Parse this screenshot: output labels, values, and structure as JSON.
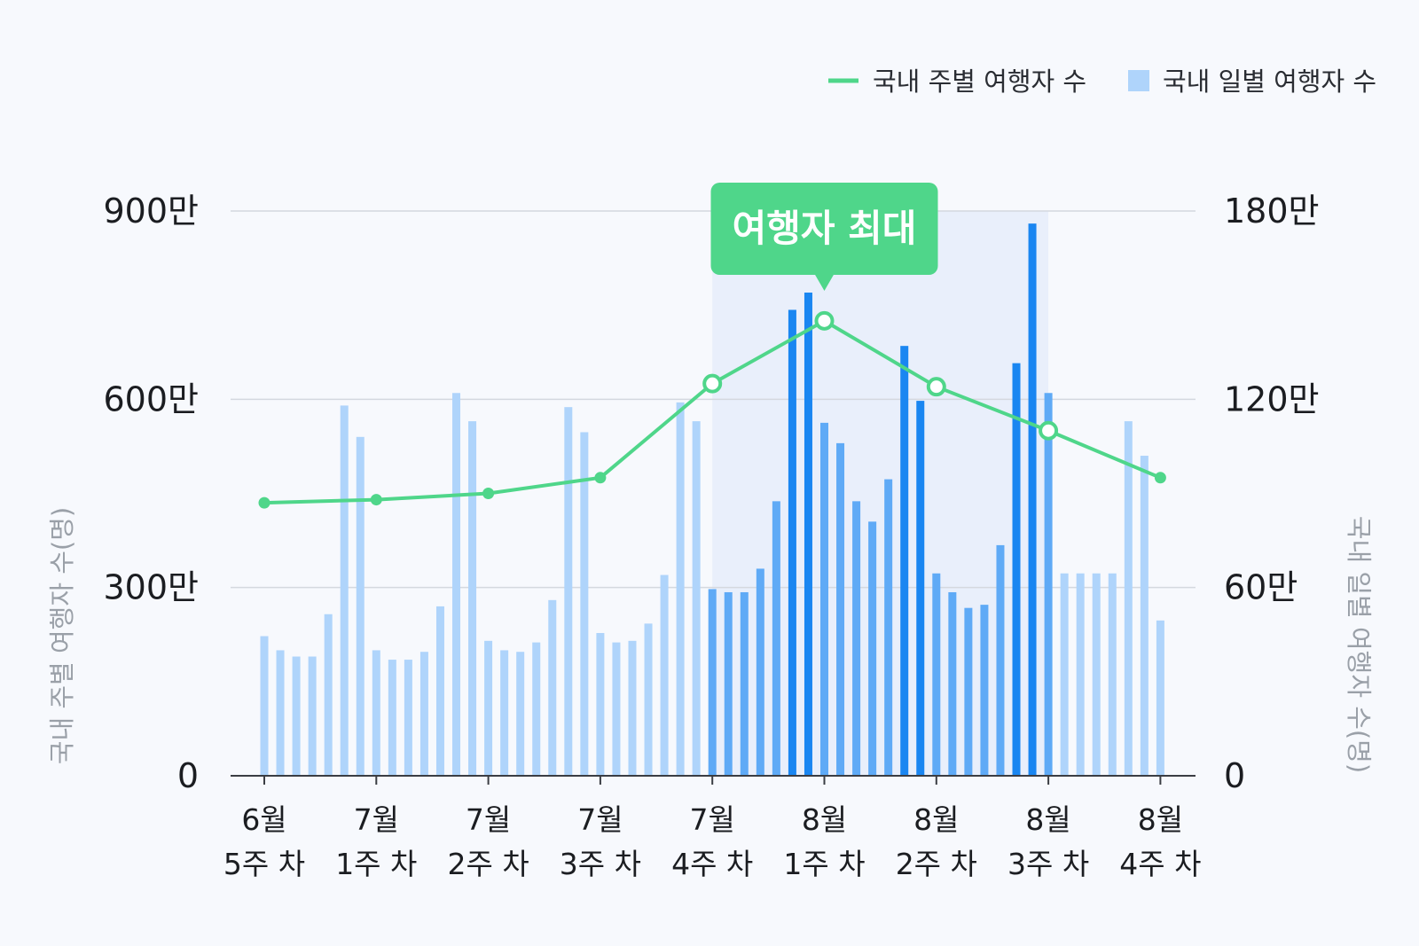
{
  "legend": {
    "weekly_label": "국내 주별 여행자 수",
    "daily_label": "국내 일별 여행자 수"
  },
  "callout": {
    "label": "여행자 최대"
  },
  "colors": {
    "background": "#f7f9fd",
    "line": "#4fd68a",
    "bar_light": "#afd4fb",
    "bar_mid": "#5faaf6",
    "bar_dark": "#1a86f1",
    "highlight_band": "#e9effb",
    "grid": "#d4d8df",
    "callout_bg": "#4fd68a"
  },
  "chart_data": {
    "type": "bar+line",
    "categories": [
      {
        "month": "6월",
        "week": "5주 차"
      },
      {
        "month": "7월",
        "week": "1주 차"
      },
      {
        "month": "7월",
        "week": "2주 차"
      },
      {
        "month": "7월",
        "week": "3주 차"
      },
      {
        "month": "7월",
        "week": "4주 차"
      },
      {
        "month": "8월",
        "week": "1주 차"
      },
      {
        "month": "8월",
        "week": "2주 차"
      },
      {
        "month": "8월",
        "week": "3주 차"
      },
      {
        "month": "8월",
        "week": "4주 차"
      }
    ],
    "y_left": {
      "title": "국내 주별 여행자 수(명)",
      "range": [
        0,
        9000000
      ],
      "ticks": [
        {
          "value": 0,
          "label": "0"
        },
        {
          "value": 3000000,
          "label": "300만"
        },
        {
          "value": 6000000,
          "label": "600만"
        },
        {
          "value": 9000000,
          "label": "900만"
        }
      ]
    },
    "y_right": {
      "title": "국내 일별 여행자 수(명)",
      "range": [
        0,
        1800000
      ],
      "ticks": [
        {
          "value": 0,
          "label": "0"
        },
        {
          "value": 600000,
          "label": "60만"
        },
        {
          "value": 1200000,
          "label": "120만"
        },
        {
          "value": 1800000,
          "label": "180만"
        }
      ]
    },
    "weekly_series": {
      "name": "국내 주별 여행자 수",
      "axis": "left",
      "values": [
        4350000,
        4400000,
        4500000,
        4750000,
        6250000,
        7250000,
        6200000,
        5500000,
        4750000
      ],
      "highlight": [
        false,
        false,
        false,
        false,
        true,
        true,
        true,
        true,
        false
      ],
      "peak_index": 5
    },
    "daily_series": {
      "name": "국내 일별 여행자 수",
      "axis": "right",
      "values": [
        445000,
        400000,
        380000,
        380000,
        515000,
        1180000,
        1080000,
        400000,
        370000,
        370000,
        395000,
        540000,
        1220000,
        1130000,
        430000,
        400000,
        395000,
        425000,
        560000,
        1175000,
        1095000,
        455000,
        425000,
        430000,
        485000,
        640000,
        1190000,
        1130000,
        595000,
        585000,
        585000,
        660000,
        875000,
        1485000,
        1540000,
        1125000,
        1060000,
        875000,
        810000,
        945000,
        1370000,
        1195000,
        645000,
        585000,
        535000,
        545000,
        735000,
        1315000,
        1760000,
        1220000,
        645000,
        645000,
        645000,
        645000,
        1130000,
        1020000,
        495000
      ],
      "shade": [
        "light",
        "light",
        "light",
        "light",
        "light",
        "light",
        "light",
        "light",
        "light",
        "light",
        "light",
        "light",
        "light",
        "light",
        "light",
        "light",
        "light",
        "light",
        "light",
        "light",
        "light",
        "light",
        "light",
        "light",
        "light",
        "light",
        "light",
        "light",
        "mid",
        "mid",
        "mid",
        "mid",
        "mid",
        "dark",
        "dark",
        "mid",
        "mid",
        "mid",
        "mid",
        "mid",
        "dark",
        "dark",
        "mid",
        "mid",
        "mid",
        "mid",
        "mid",
        "dark",
        "dark",
        "mid",
        "light",
        "light",
        "light",
        "light",
        "light",
        "light",
        "light"
      ]
    },
    "highlight_range": {
      "from_category": 4,
      "to_category": 7
    },
    "legend_position": "top-right",
    "grid": true
  }
}
